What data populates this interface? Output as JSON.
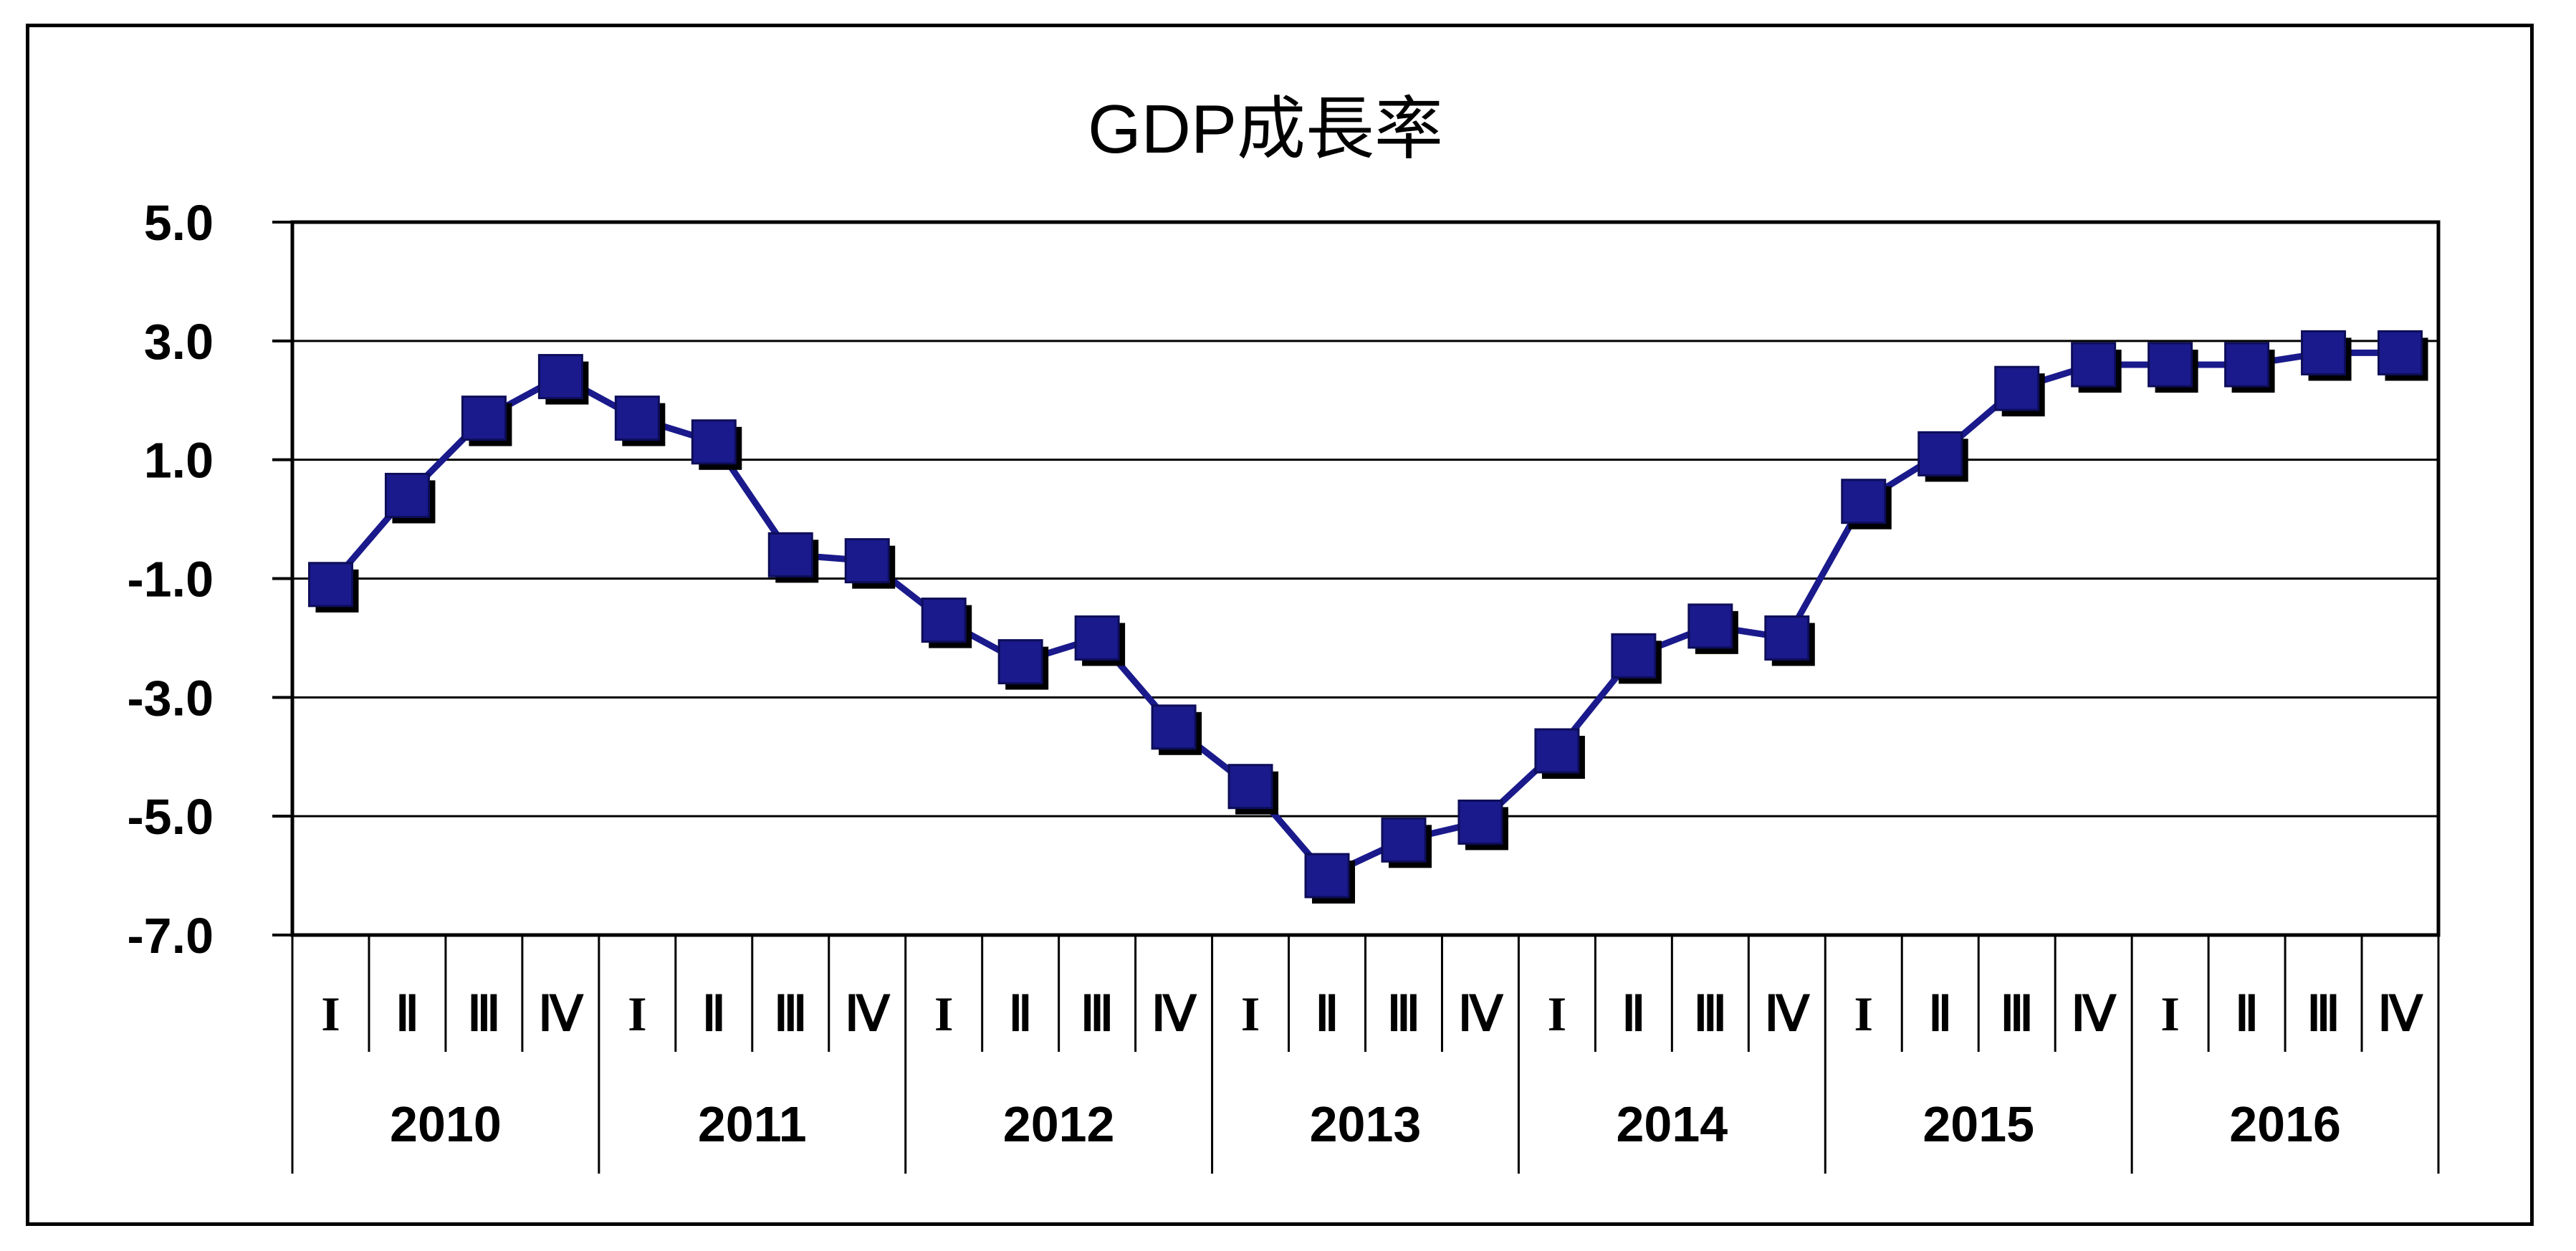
{
  "chart_data": {
    "type": "line",
    "title": "GDP成長率",
    "xlabel": "",
    "ylabel": "",
    "ylim": [
      -7.0,
      5.0
    ],
    "yticks": [
      "5.0",
      "3.0",
      "1.0",
      "-1.0",
      "-3.0",
      "-5.0",
      "-7.0"
    ],
    "grid": true,
    "legend": "none",
    "years": [
      "2010",
      "2011",
      "2012",
      "2013",
      "2014",
      "2015",
      "2016"
    ],
    "quarters": [
      "I",
      "Ⅱ",
      "Ⅲ",
      "Ⅳ"
    ],
    "series": [
      {
        "name": "",
        "color": "#1a1a8c",
        "values": [
          -1.1,
          0.4,
          1.7,
          2.4,
          1.7,
          1.3,
          -0.6,
          -0.7,
          -1.7,
          -2.4,
          -2.0,
          -3.5,
          -4.5,
          -6.0,
          -5.4,
          -5.1,
          -3.9,
          -2.3,
          -1.8,
          -2.0,
          0.3,
          1.1,
          2.2,
          2.6,
          2.6,
          2.6,
          2.8,
          2.8
        ]
      }
    ]
  }
}
